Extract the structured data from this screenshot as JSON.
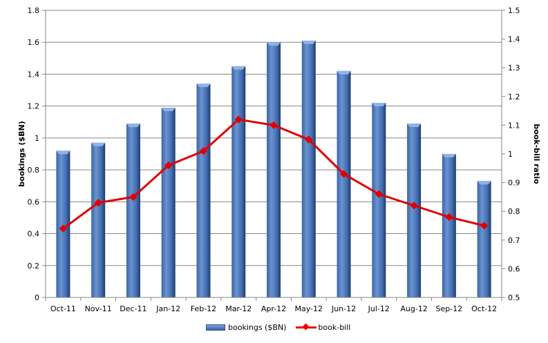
{
  "chart_data": {
    "type": "bar",
    "title": "",
    "categories": [
      "Oct-11",
      "Nov-11",
      "Dec-11",
      "Jan-12",
      "Feb-12",
      "Mar-12",
      "Apr-12",
      "May-12",
      "Jun-12",
      "Jul-12",
      "Aug-12",
      "Sep-12",
      "Oct-12"
    ],
    "series": [
      {
        "name": "bookings ($BN)",
        "type": "bar",
        "axis": "left",
        "color": "#4f81bd",
        "values": [
          0.92,
          0.97,
          1.09,
          1.19,
          1.34,
          1.45,
          1.6,
          1.61,
          1.42,
          1.22,
          1.09,
          0.9,
          0.73
        ]
      },
      {
        "name": "book-bill",
        "type": "line",
        "axis": "right",
        "color": "#e00000",
        "marker": "diamond",
        "values": [
          0.74,
          0.83,
          0.85,
          0.96,
          1.01,
          1.12,
          1.1,
          1.05,
          0.93,
          0.86,
          0.82,
          0.78,
          0.75
        ]
      }
    ],
    "xlabel": "",
    "ylabel": "bookings ($BN)",
    "y2label": "book-bill ratio",
    "ylim": [
      0,
      1.8
    ],
    "y2lim": [
      0.5,
      1.5
    ],
    "yticks": [
      "0",
      "0.2",
      "0.4",
      "0.6",
      "0.8",
      "1",
      "1.2",
      "1.4",
      "1.6",
      "1.8"
    ],
    "y2ticks": [
      "0.5",
      "0.6",
      "0.7",
      "0.8",
      "0.9",
      "1",
      "1.1",
      "1.2",
      "1.3",
      "1.4",
      "1.5"
    ],
    "grid": true,
    "legend_position": "bottom"
  },
  "legend": {
    "bar_label": "bookings ($BN)",
    "line_label": "book-bill"
  }
}
